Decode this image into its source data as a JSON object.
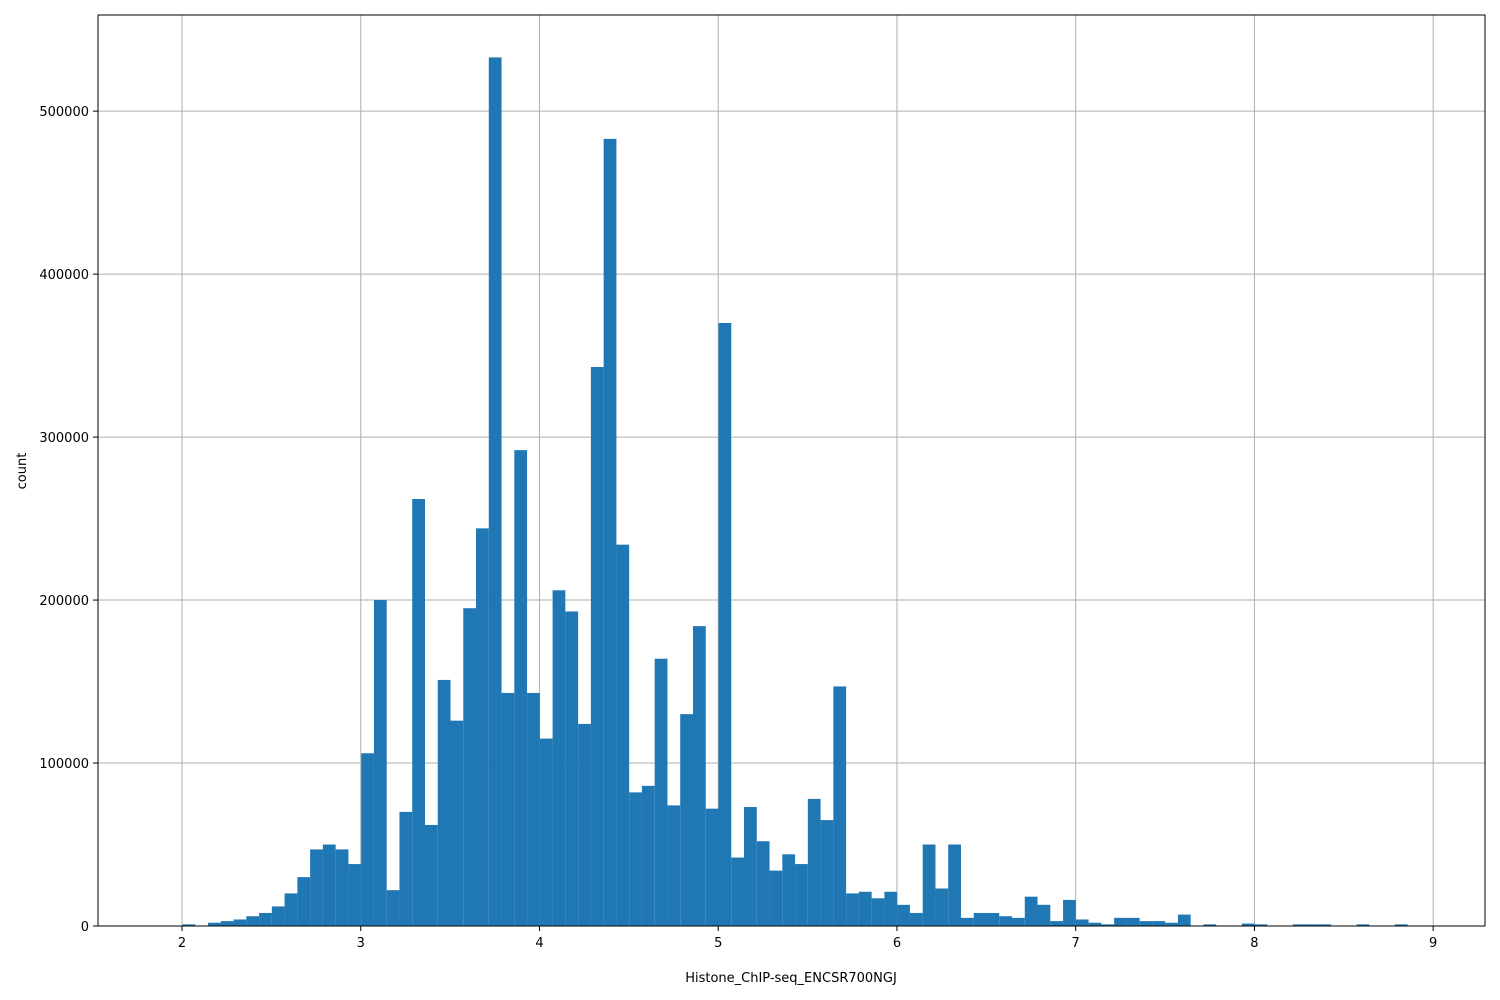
{
  "chart_data": {
    "type": "bar",
    "title": "",
    "xlabel": "Histone_ChIP-seq_ENCSR700NGJ",
    "ylabel": "count",
    "xlim": [
      1.53,
      9.29
    ],
    "ylim": [
      0,
      559000
    ],
    "grid": true,
    "xticks": [
      2,
      3,
      4,
      5,
      6,
      7,
      8,
      9
    ],
    "yticks": [
      0,
      100000,
      200000,
      300000,
      400000,
      500000
    ],
    "bin_start": 1.86,
    "bin_width": 0.0714,
    "values": [
      0,
      0,
      1000,
      0,
      2000,
      3000,
      4000,
      6000,
      8000,
      12000,
      20000,
      30000,
      47000,
      50000,
      47000,
      38000,
      106000,
      200000,
      22000,
      70000,
      262000,
      62000,
      151000,
      126000,
      195000,
      244000,
      533000,
      143000,
      292000,
      143000,
      115000,
      206000,
      193000,
      124000,
      343000,
      483000,
      234000,
      82000,
      86000,
      164000,
      74000,
      130000,
      184000,
      72000,
      370000,
      42000,
      73000,
      52000,
      34000,
      44000,
      38000,
      78000,
      65000,
      147000,
      20000,
      21000,
      17000,
      21000,
      13000,
      8000,
      50000,
      23000,
      50000,
      5000,
      8000,
      8000,
      6000,
      5000,
      18000,
      13000,
      3000,
      16000,
      4000,
      2000,
      1000,
      5000,
      5000,
      3000,
      3000,
      2000,
      7000,
      0,
      1000,
      0,
      0,
      1500,
      1000,
      0,
      0,
      1000,
      1000,
      1000,
      0,
      0,
      1000,
      0,
      0,
      1000,
      0,
      0
    ]
  }
}
